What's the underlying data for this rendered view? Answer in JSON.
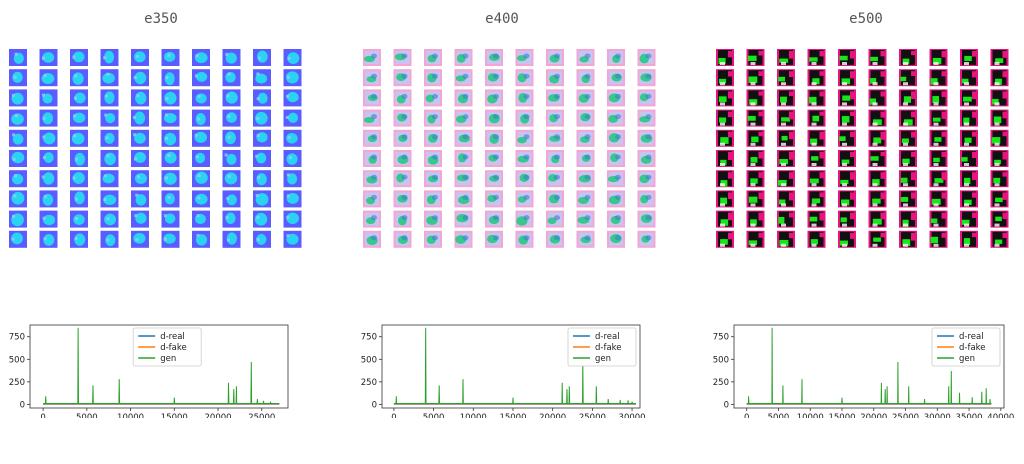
{
  "panels": [
    {
      "title": "e350",
      "palette": "blue"
    },
    {
      "title": "e400",
      "palette": "pink"
    },
    {
      "title": "e500",
      "palette": "black"
    }
  ],
  "colors": {
    "d_real": "#1f77b4",
    "d_fake": "#ff7f0e",
    "gen": "#2ca02c",
    "blue_bg": "#5a5cff",
    "blue_fg": "#23e0f0",
    "pink_bg": "#f3a6d6",
    "pink_fg": "#1fc87a",
    "black_bg": "#e8137e",
    "black_fg": "#19e619"
  },
  "chart_data": [
    {
      "type": "line",
      "xlim": [
        -1500,
        28000
      ],
      "ylim": [
        -40,
        880
      ],
      "x_ticks": [
        0,
        5000,
        10000,
        15000,
        20000,
        25000
      ],
      "y_ticks": [
        0,
        250,
        500,
        750
      ],
      "legend_position": "top-center",
      "series": [
        {
          "name": "d-real",
          "baseline": 2
        },
        {
          "name": "d-fake",
          "baseline": 5
        },
        {
          "name": "gen",
          "baseline": 10,
          "spikes": [
            [
              300,
              90
            ],
            [
              4000,
              850
            ],
            [
              5700,
              210
            ],
            [
              8700,
              280
            ],
            [
              15000,
              75
            ],
            [
              21200,
              240
            ],
            [
              21800,
              170
            ],
            [
              22100,
              200
            ],
            [
              23800,
              470
            ],
            [
              24500,
              60
            ],
            [
              25200,
              40
            ],
            [
              26000,
              30
            ]
          ]
        }
      ],
      "x_end": 27000
    },
    {
      "type": "line",
      "xlim": [
        -1500,
        31000
      ],
      "ylim": [
        -40,
        880
      ],
      "x_ticks": [
        0,
        5000,
        10000,
        15000,
        20000,
        25000,
        30000
      ],
      "y_ticks": [
        0,
        250,
        500,
        750
      ],
      "legend_position": "top-right",
      "series": [
        {
          "name": "d-real",
          "baseline": 2
        },
        {
          "name": "d-fake",
          "baseline": 5
        },
        {
          "name": "gen",
          "baseline": 10,
          "spikes": [
            [
              300,
              90
            ],
            [
              4000,
              850
            ],
            [
              5700,
              210
            ],
            [
              8700,
              280
            ],
            [
              15000,
              75
            ],
            [
              21200,
              240
            ],
            [
              21800,
              170
            ],
            [
              22100,
              200
            ],
            [
              23800,
              470
            ],
            [
              25500,
              200
            ],
            [
              27000,
              60
            ],
            [
              28500,
              50
            ],
            [
              29500,
              45
            ],
            [
              30000,
              30
            ]
          ]
        }
      ],
      "x_end": 30500
    },
    {
      "type": "line",
      "xlim": [
        -2000,
        40500
      ],
      "ylim": [
        -40,
        880
      ],
      "x_ticks": [
        0,
        5000,
        10000,
        15000,
        20000,
        25000,
        30000,
        35000,
        40000
      ],
      "y_ticks": [
        0,
        250,
        500,
        750
      ],
      "legend_position": "top-right",
      "series": [
        {
          "name": "d-real",
          "baseline": 2
        },
        {
          "name": "d-fake",
          "baseline": 5
        },
        {
          "name": "gen",
          "baseline": 10,
          "spikes": [
            [
              300,
              90
            ],
            [
              4000,
              850
            ],
            [
              5700,
              210
            ],
            [
              8700,
              280
            ],
            [
              15000,
              75
            ],
            [
              21200,
              240
            ],
            [
              21800,
              170
            ],
            [
              22100,
              200
            ],
            [
              23800,
              470
            ],
            [
              25500,
              200
            ],
            [
              28000,
              60
            ],
            [
              31800,
              200
            ],
            [
              32200,
              370
            ],
            [
              33500,
              130
            ],
            [
              35500,
              80
            ],
            [
              37000,
              140
            ],
            [
              37700,
              180
            ],
            [
              38300,
              60
            ]
          ]
        }
      ],
      "x_end": 38500
    }
  ]
}
